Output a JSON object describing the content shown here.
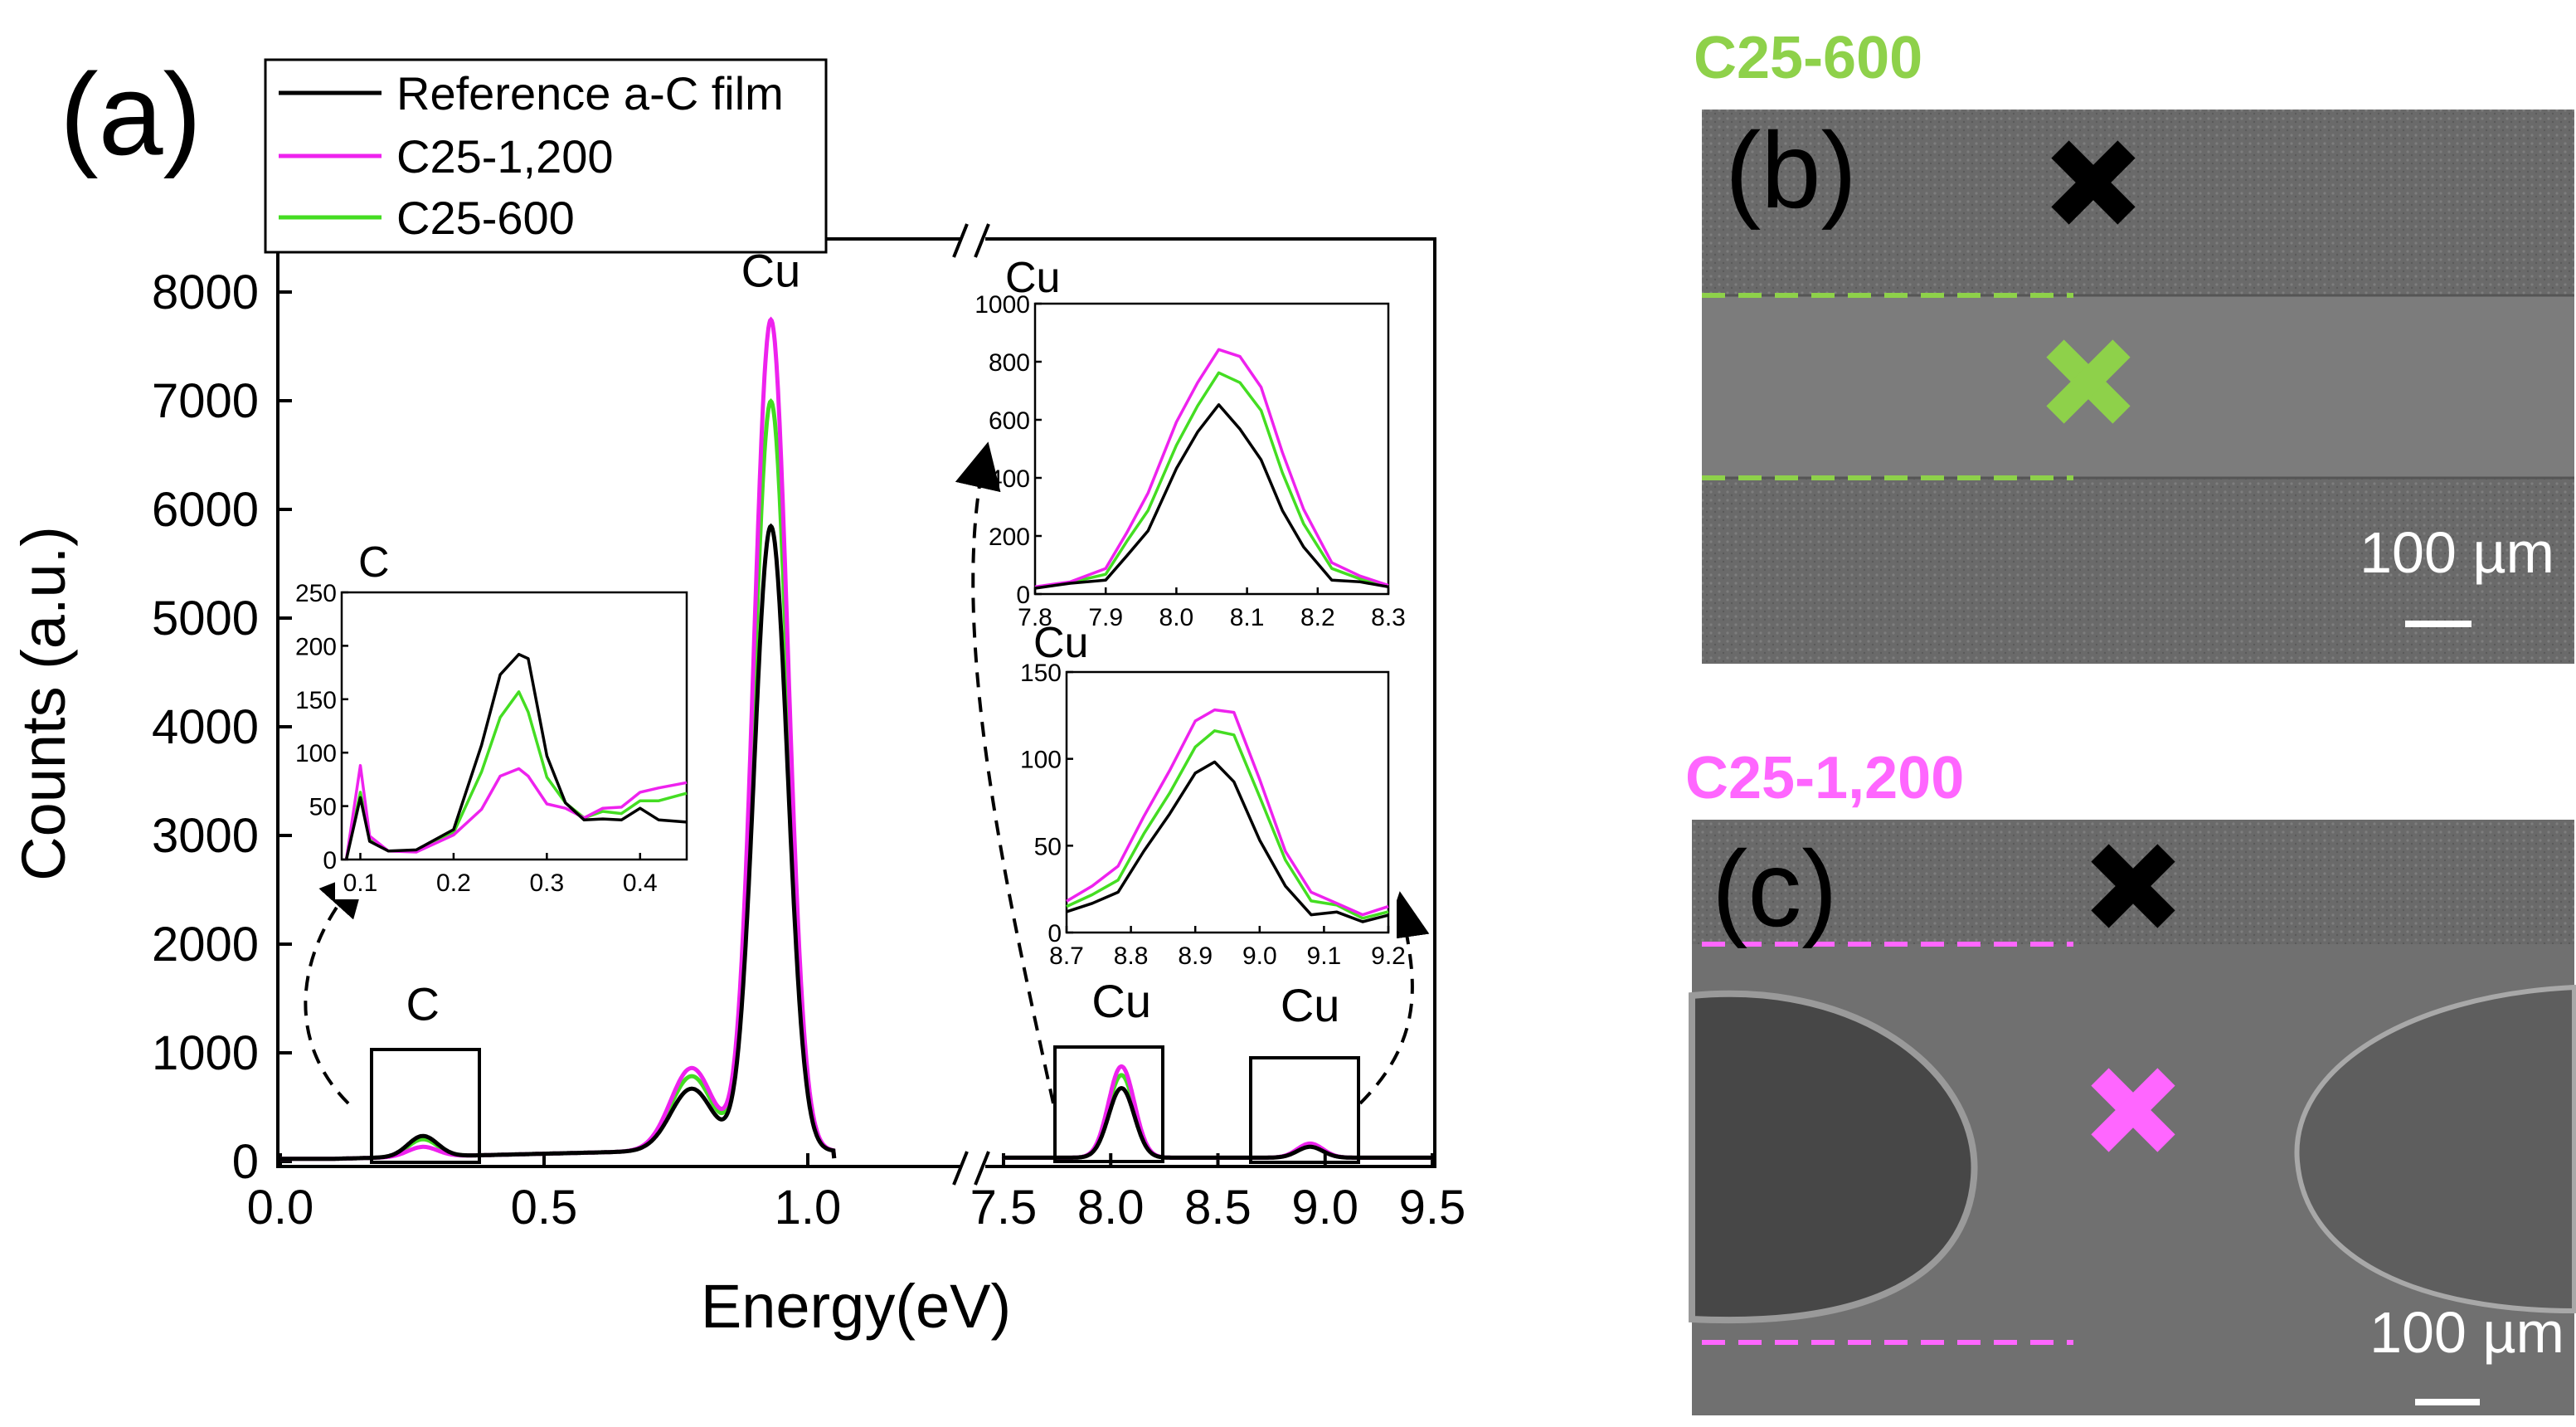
{
  "panel_labels": {
    "a": "(a)",
    "b": "(b)",
    "c": "(c)"
  },
  "colors": {
    "reference": "#000000",
    "c25_1200": "#ee22ee",
    "c25_600": "#44dd22",
    "label_600": "#8ed14a",
    "label_1200": "#ff66ff"
  },
  "sem": {
    "b": {
      "title": "C25-600",
      "scale_label": "100 µm"
    },
    "c": {
      "title": "C25-1,200",
      "scale_label": "100 µm"
    }
  },
  "chart_data": [
    {
      "type": "line",
      "title": "",
      "xlabel": "Energy(eV)",
      "ylabel": "Counts (a.u.)",
      "ylim": [
        0,
        8500
      ],
      "x_segments": [
        [
          0.0,
          1.05
        ],
        [
          7.5,
          9.5
        ]
      ],
      "axis_break": "between 1.05 and 7.5",
      "x_ticks": [
        "0.0",
        "0.5",
        "1.0",
        "7.5",
        "8.0",
        "8.5",
        "9.0",
        "9.5"
      ],
      "y_ticks": [
        "0",
        "1000",
        "2000",
        "3000",
        "4000",
        "5000",
        "6000",
        "7000",
        "8000"
      ],
      "legend": [
        "Reference a-C film",
        "C25-1,200",
        "C25-600"
      ],
      "legend_position": "top-left",
      "annotations": [
        {
          "text": "Cu",
          "x": 0.93,
          "y": 8050
        },
        {
          "text": "C",
          "x": 0.27,
          "y": 1300
        },
        {
          "text": "Cu",
          "x": 8.05,
          "y": 1330
        },
        {
          "text": "Cu",
          "x": 8.93,
          "y": 1290
        }
      ],
      "peaks": [
        {
          "element": "C",
          "x": 0.27,
          "values": {
            "Reference a-C film": 190,
            "C25-1,200": 90,
            "C25-600": 160
          }
        },
        {
          "element": "Cu",
          "x": 0.93,
          "values": {
            "Reference a-C film": 5750,
            "C25-1,200": 7650,
            "C25-600": 6900
          }
        },
        {
          "element": "Cu",
          "x": 8.05,
          "values": {
            "Reference a-C film": 640,
            "C25-1,200": 840,
            "C25-600": 760
          }
        },
        {
          "element": "Cu",
          "x": 8.93,
          "values": {
            "Reference a-C film": 100,
            "C25-1,200": 130,
            "C25-600": 120
          }
        }
      ]
    },
    {
      "type": "line",
      "title": "C",
      "xlim": [
        0.08,
        0.45
      ],
      "ylim": [
        0,
        250
      ],
      "x_ticks": [
        "0.1",
        "0.2",
        "0.3",
        "0.4"
      ],
      "y_ticks": [
        "0",
        "50",
        "100",
        "150",
        "200",
        "250"
      ],
      "series": [
        {
          "name": "Reference a-C film",
          "x": [
            0.085,
            0.1,
            0.11,
            0.13,
            0.16,
            0.2,
            0.23,
            0.25,
            0.27,
            0.28,
            0.3,
            0.32,
            0.34,
            0.36,
            0.38,
            0.4,
            0.42,
            0.45
          ],
          "values": [
            0,
            55,
            20,
            5,
            12,
            25,
            110,
            170,
            195,
            185,
            100,
            50,
            40,
            35,
            40,
            45,
            40,
            35
          ]
        },
        {
          "name": "C25-1,200",
          "x": [
            0.085,
            0.1,
            0.11,
            0.13,
            0.16,
            0.2,
            0.23,
            0.25,
            0.27,
            0.28,
            0.3,
            0.32,
            0.34,
            0.36,
            0.38,
            0.4,
            0.42,
            0.45
          ],
          "values": [
            0,
            85,
            25,
            5,
            10,
            20,
            50,
            75,
            88,
            75,
            55,
            45,
            42,
            45,
            52,
            60,
            70,
            72
          ]
        },
        {
          "name": "C25-600",
          "x": [
            0.085,
            0.1,
            0.11,
            0.13,
            0.16,
            0.2,
            0.23,
            0.25,
            0.27,
            0.28,
            0.3,
            0.32,
            0.34,
            0.36,
            0.38,
            0.4,
            0.42,
            0.45
          ],
          "values": [
            0,
            60,
            22,
            5,
            11,
            22,
            85,
            130,
            160,
            135,
            80,
            50,
            42,
            42,
            46,
            52,
            58,
            62
          ]
        }
      ]
    },
    {
      "type": "line",
      "title": "Cu",
      "xlim": [
        7.8,
        8.3
      ],
      "ylim": [
        0,
        1000
      ],
      "x_ticks": [
        "7.8",
        "7.9",
        "8.0",
        "8.1",
        "8.2",
        "8.3"
      ],
      "y_ticks": [
        "0",
        "200",
        "400",
        "600",
        "800",
        "1000"
      ],
      "series": [
        {
          "name": "Reference a-C film",
          "x": [
            7.8,
            7.85,
            7.9,
            7.93,
            7.96,
            8.0,
            8.03,
            8.06,
            8.09,
            8.12,
            8.15,
            8.18,
            8.22,
            8.26,
            8.3
          ],
          "values": [
            20,
            25,
            60,
            120,
            230,
            420,
            570,
            640,
            580,
            450,
            300,
            150,
            60,
            30,
            25
          ]
        },
        {
          "name": "C25-1,200",
          "x": [
            7.8,
            7.85,
            7.9,
            7.93,
            7.96,
            8.0,
            8.03,
            8.06,
            8.09,
            8.12,
            8.15,
            8.18,
            8.22,
            8.26,
            8.3
          ],
          "values": [
            25,
            30,
            100,
            200,
            360,
            580,
            740,
            830,
            830,
            700,
            500,
            280,
            120,
            50,
            30
          ]
        },
        {
          "name": "C25-600",
          "x": [
            7.8,
            7.85,
            7.9,
            7.93,
            7.96,
            8.0,
            8.03,
            8.06,
            8.09,
            8.12,
            8.15,
            8.18,
            8.22,
            8.26,
            8.3
          ],
          "values": [
            22,
            28,
            80,
            170,
            300,
            500,
            660,
            750,
            740,
            620,
            430,
            230,
            100,
            40,
            28
          ]
        }
      ]
    },
    {
      "type": "line",
      "title": "Cu",
      "xlim": [
        8.7,
        9.2
      ],
      "ylim": [
        0,
        150
      ],
      "x_ticks": [
        "8.7",
        "8.8",
        "8.9",
        "9.0",
        "9.1",
        "9.2"
      ],
      "y_ticks": [
        "0",
        "50",
        "100",
        "150"
      ],
      "series": [
        {
          "name": "Reference a-C film",
          "x": [
            8.7,
            8.74,
            8.78,
            8.82,
            8.86,
            8.9,
            8.93,
            8.96,
            9.0,
            9.04,
            9.08,
            9.12,
            9.16,
            9.2
          ],
          "values": [
            12,
            15,
            25,
            45,
            70,
            90,
            100,
            85,
            55,
            25,
            12,
            10,
            8,
            10
          ]
        },
        {
          "name": "C25-1,200",
          "x": [
            8.7,
            8.74,
            8.78,
            8.82,
            8.86,
            8.9,
            8.93,
            8.96,
            9.0,
            9.04,
            9.08,
            9.12,
            9.16,
            9.2
          ],
          "values": [
            18,
            25,
            40,
            65,
            95,
            120,
            130,
            125,
            90,
            45,
            25,
            15,
            12,
            15
          ]
        },
        {
          "name": "C25-600",
          "x": [
            8.7,
            8.74,
            8.78,
            8.82,
            8.86,
            8.9,
            8.93,
            8.96,
            9.0,
            9.04,
            9.08,
            9.12,
            9.16,
            9.2
          ],
          "values": [
            15,
            20,
            32,
            55,
            82,
            105,
            118,
            112,
            80,
            40,
            20,
            14,
            10,
            12
          ]
        }
      ]
    }
  ]
}
